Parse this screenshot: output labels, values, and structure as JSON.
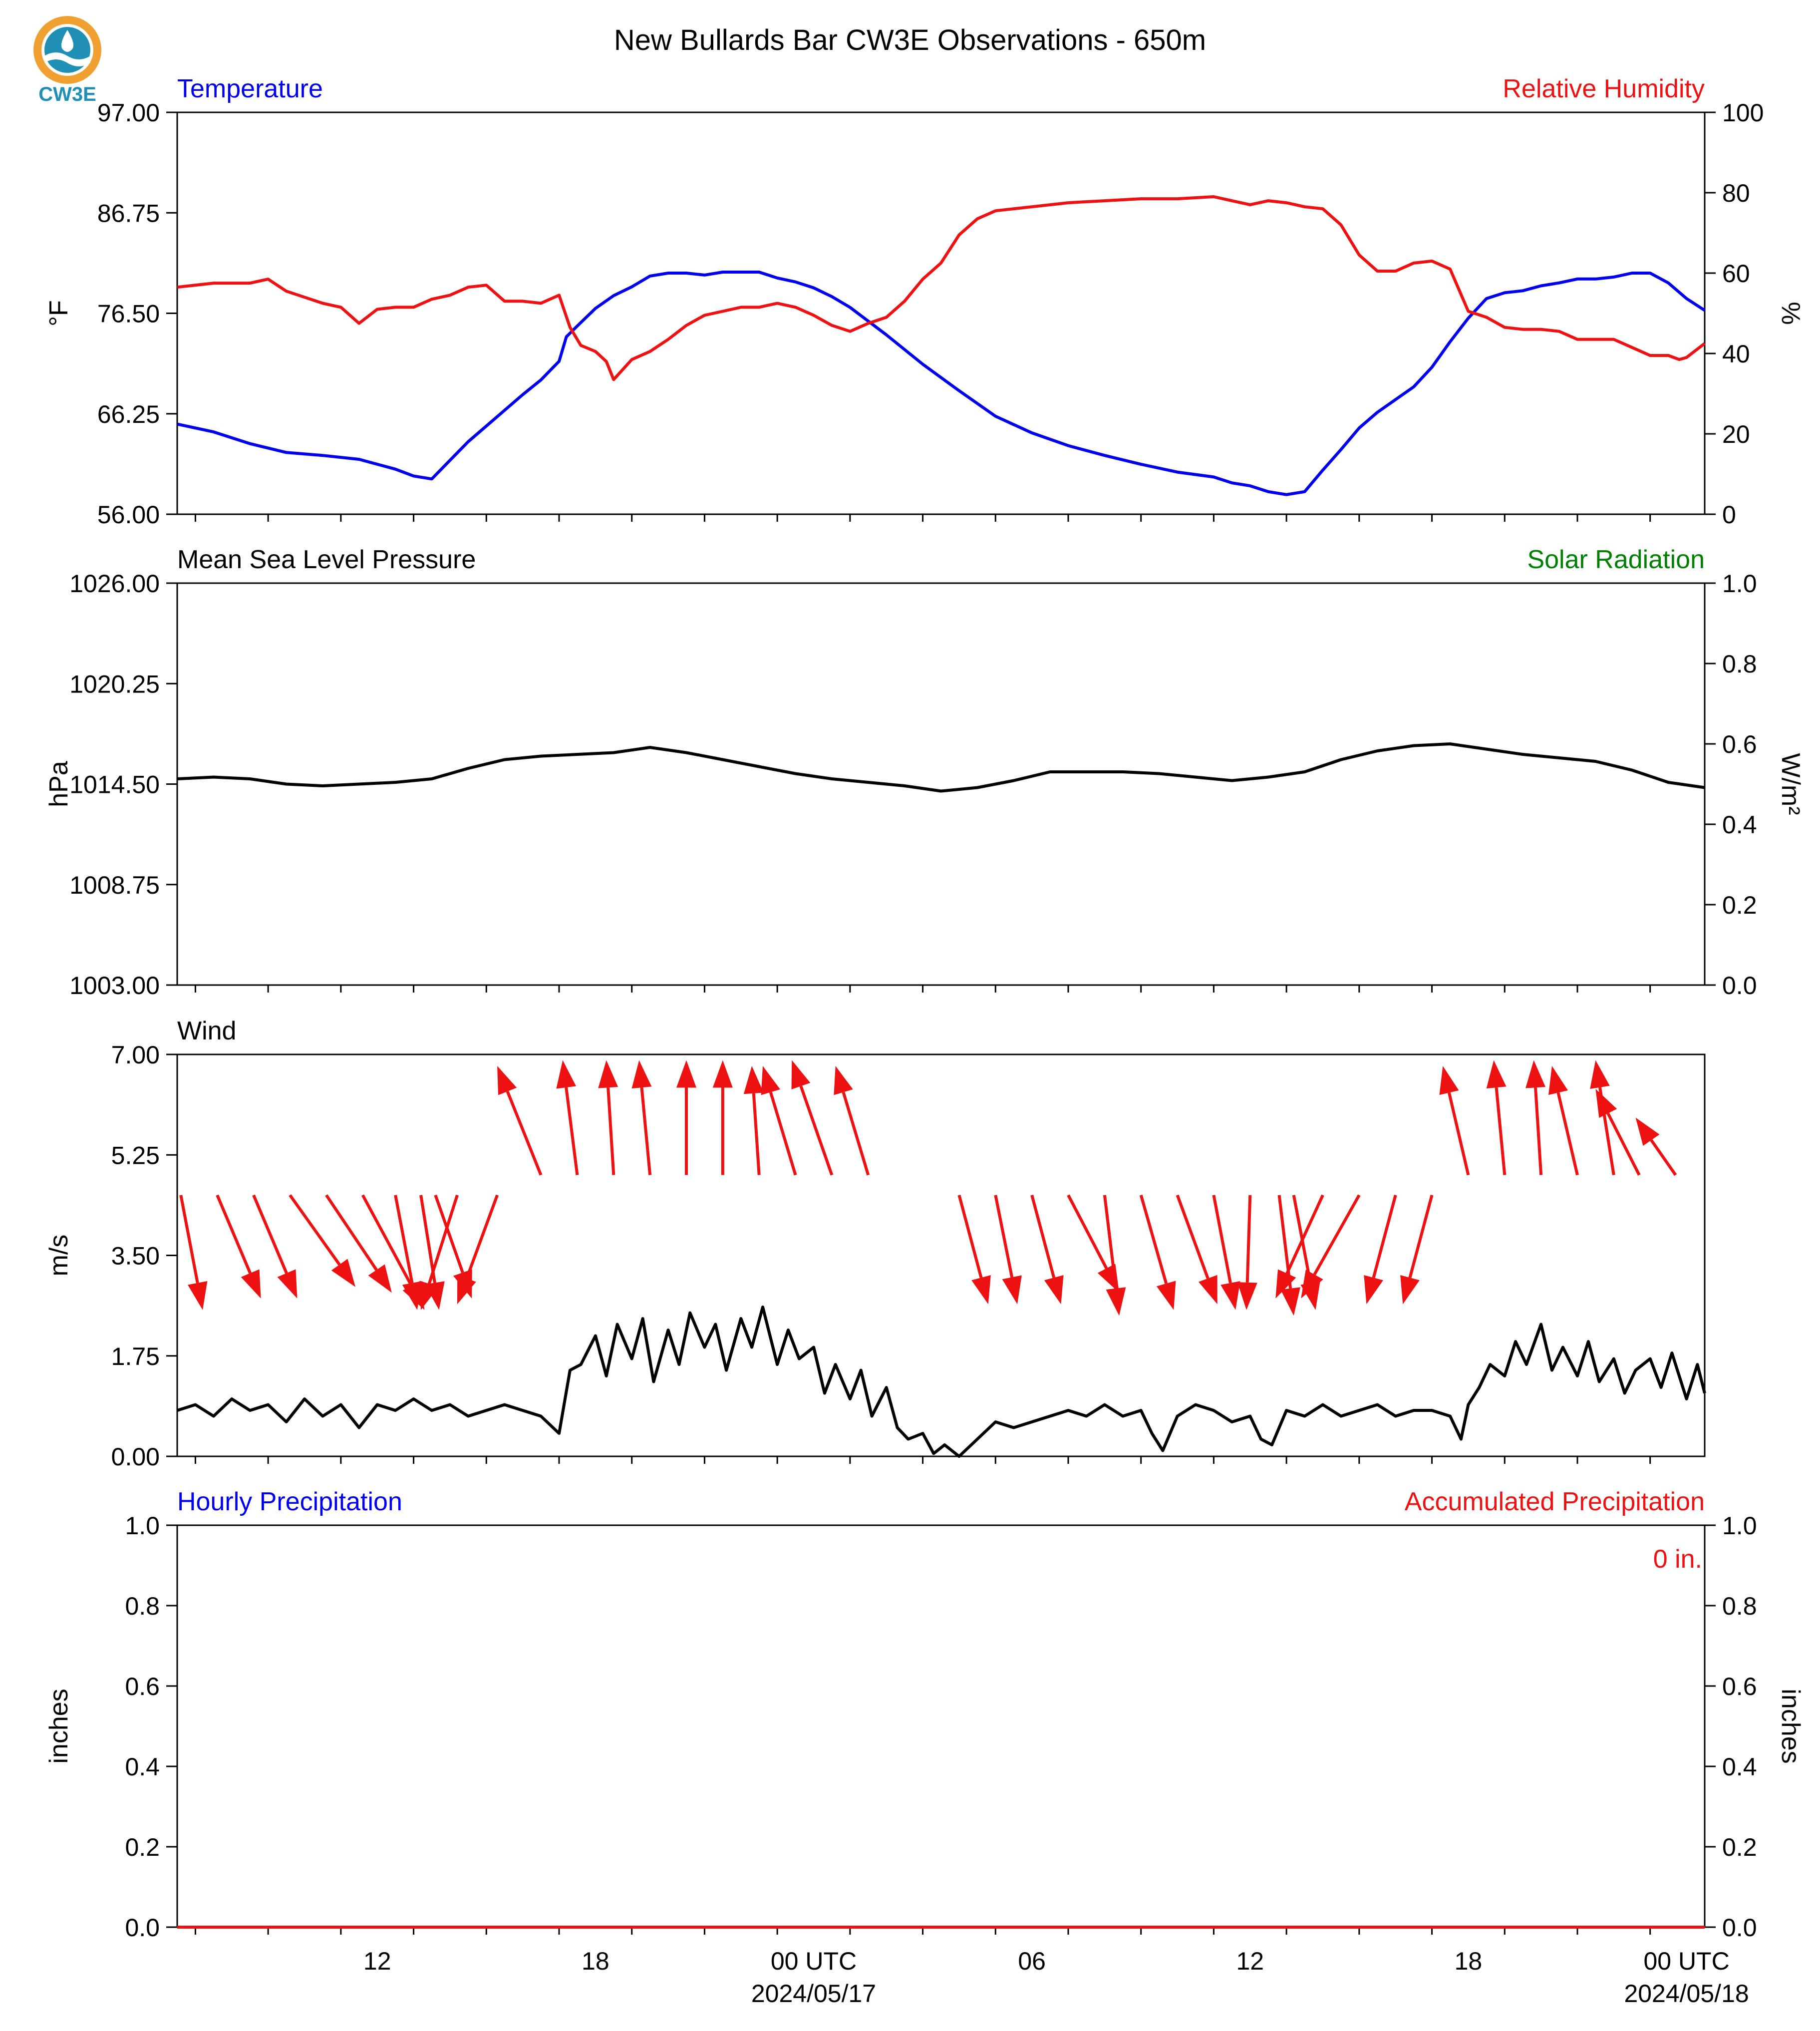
{
  "title": "New Bullards Bar CW3E Observations - 650m",
  "logo_text": "CW3E",
  "colors": {
    "temperature": "#0000ee",
    "humidity": "#ee1111",
    "pressure": "#000000",
    "wind_speed": "#000000",
    "wind_arrow": "#ee1111",
    "solar": "#008000",
    "hourly_precip": "#0000ee",
    "accum_precip": "#ee1111",
    "axis": "#000000"
  },
  "x_axis": {
    "range_hours": [
      6.5,
      48.5
    ],
    "major_ticks": [
      {
        "hour": 12,
        "label": "12",
        "sublabel": ""
      },
      {
        "hour": 18,
        "label": "18",
        "sublabel": ""
      },
      {
        "hour": 24,
        "label": "00 UTC",
        "sublabel": "2024/05/17"
      },
      {
        "hour": 30,
        "label": "06",
        "sublabel": ""
      },
      {
        "hour": 36,
        "label": "12",
        "sublabel": ""
      },
      {
        "hour": 42,
        "label": "18",
        "sublabel": ""
      },
      {
        "hour": 48,
        "label": "00 UTC",
        "sublabel": "2024/05/18"
      }
    ],
    "minor_step_hours": 2
  },
  "chart_data": [
    {
      "type": "line",
      "left_title": "Temperature",
      "right_title": "Relative Humidity",
      "ylabel": "°F",
      "ylabel_right": "%",
      "ylim": [
        56.0,
        97.0
      ],
      "yticks": [
        "56.00",
        "66.25",
        "76.50",
        "86.75",
        "97.00"
      ],
      "ylim_right": [
        0,
        100
      ],
      "yticks_right": [
        "0",
        "20",
        "40",
        "60",
        "80",
        "100"
      ],
      "series": [
        {
          "name": "Temperature",
          "axis": "left",
          "x": [
            6.5,
            7.5,
            8.5,
            9.5,
            10.5,
            11.5,
            12.5,
            13.0,
            13.5,
            14.0,
            14.5,
            15.0,
            15.5,
            16.0,
            16.5,
            17.0,
            17.2,
            17.5,
            18.0,
            18.5,
            19.0,
            19.5,
            20.0,
            20.5,
            21.0,
            21.5,
            22.0,
            22.5,
            23.0,
            23.5,
            24.0,
            24.5,
            25.0,
            25.5,
            26.0,
            27.0,
            28.0,
            29.0,
            30.0,
            31.0,
            32.0,
            33.0,
            34.0,
            35.0,
            35.5,
            36.0,
            36.5,
            37.0,
            37.5,
            38.0,
            38.5,
            39.0,
            39.5,
            40.0,
            40.5,
            41.0,
            41.5,
            42.0,
            42.5,
            43.0,
            43.5,
            44.0,
            44.5,
            45.0,
            45.5,
            46.0,
            46.5,
            47.0,
            47.5,
            48.0,
            48.5
          ],
          "y": [
            65.2,
            64.4,
            63.2,
            62.3,
            62.0,
            61.6,
            60.6,
            59.9,
            59.6,
            61.5,
            63.4,
            65.0,
            66.6,
            68.2,
            69.7,
            71.6,
            74.1,
            75.2,
            77.0,
            78.3,
            79.2,
            80.3,
            80.6,
            80.6,
            80.4,
            80.7,
            80.7,
            80.7,
            80.1,
            79.7,
            79.1,
            78.2,
            77.1,
            75.7,
            74.3,
            71.3,
            68.6,
            66.0,
            64.3,
            63.0,
            62.0,
            61.1,
            60.3,
            59.8,
            59.2,
            58.9,
            58.3,
            58.0,
            58.3,
            60.5,
            62.6,
            64.8,
            66.4,
            67.7,
            69.0,
            71.0,
            73.6,
            76.0,
            78.0,
            78.6,
            78.8,
            79.3,
            79.6,
            80.0,
            80.0,
            80.2,
            80.6,
            80.6,
            79.6,
            78.0,
            76.8
          ]
        },
        {
          "name": "Relative Humidity",
          "axis": "right",
          "x": [
            6.5,
            7.5,
            8.5,
            9.0,
            9.5,
            10.0,
            10.5,
            11.0,
            11.5,
            12.0,
            12.5,
            13.0,
            13.5,
            14.0,
            14.5,
            15.0,
            15.5,
            16.0,
            16.5,
            17.0,
            17.3,
            17.6,
            18.0,
            18.3,
            18.5,
            19.0,
            19.5,
            20.0,
            20.5,
            21.0,
            21.5,
            22.0,
            22.5,
            23.0,
            23.5,
            24.0,
            24.5,
            25.0,
            25.5,
            26.0,
            26.5,
            27.0,
            27.5,
            28.0,
            28.5,
            29.0,
            29.5,
            30.0,
            31.0,
            32.0,
            33.0,
            34.0,
            35.0,
            35.5,
            36.0,
            36.5,
            37.0,
            37.5,
            38.0,
            38.5,
            39.0,
            39.5,
            40.0,
            40.5,
            41.0,
            41.5,
            42.0,
            42.5,
            43.0,
            43.5,
            44.0,
            44.5,
            45.0,
            45.5,
            46.0,
            46.5,
            47.0,
            47.5,
            47.8,
            48.0,
            48.5
          ],
          "y": [
            56.5,
            57.5,
            57.5,
            58.5,
            55.5,
            54.0,
            52.5,
            51.5,
            47.5,
            51.0,
            51.5,
            51.5,
            53.5,
            54.5,
            56.5,
            57.0,
            53.0,
            53.0,
            52.5,
            54.5,
            46.5,
            42.0,
            40.5,
            38.0,
            33.5,
            38.5,
            40.5,
            43.5,
            47.0,
            49.5,
            50.5,
            51.5,
            51.5,
            52.5,
            51.5,
            49.5,
            47.0,
            45.5,
            47.5,
            49.0,
            53.0,
            58.5,
            62.5,
            69.5,
            73.5,
            75.5,
            76.0,
            76.5,
            77.5,
            78.0,
            78.5,
            78.5,
            79.0,
            78.0,
            77.0,
            78.0,
            77.5,
            76.5,
            76.0,
            72.0,
            64.5,
            60.5,
            60.5,
            62.5,
            63.0,
            61.0,
            50.5,
            49.0,
            46.5,
            46.0,
            46.0,
            45.5,
            43.5,
            43.5,
            43.5,
            41.5,
            39.5,
            39.5,
            38.5,
            39.0,
            42.5
          ]
        }
      ]
    },
    {
      "type": "line",
      "left_title": "Mean Sea Level Pressure",
      "right_title": "Solar Radiation",
      "ylabel": "hPa",
      "ylabel_right": "W/m²",
      "ylim": [
        1003.0,
        1026.0
      ],
      "yticks": [
        "1003.00",
        "1008.75",
        "1014.50",
        "1020.25",
        "1026.00"
      ],
      "ylim_right": [
        0,
        1
      ],
      "yticks_right": [
        "0.0",
        "0.2",
        "0.4",
        "0.6",
        "0.8",
        "1.0"
      ],
      "series": [
        {
          "name": "Mean Sea Level Pressure",
          "axis": "left",
          "x": [
            6.5,
            7.5,
            8.5,
            9.5,
            10.5,
            11.5,
            12.5,
            13.5,
            14.5,
            15.5,
            16.5,
            17.5,
            18.5,
            19.5,
            20.5,
            21.5,
            22.5,
            23.5,
            24.5,
            25.5,
            26.5,
            27.5,
            28.5,
            29.5,
            30.5,
            31.5,
            32.5,
            33.5,
            34.5,
            35.5,
            36.5,
            37.5,
            38.5,
            39.5,
            40.5,
            41.5,
            42.5,
            43.5,
            44.5,
            45.5,
            46.5,
            47.5,
            48.5
          ],
          "y": [
            1014.8,
            1014.9,
            1014.8,
            1014.5,
            1014.4,
            1014.5,
            1014.6,
            1014.8,
            1015.4,
            1015.9,
            1016.1,
            1016.2,
            1016.3,
            1016.6,
            1016.3,
            1015.9,
            1015.5,
            1015.1,
            1014.8,
            1014.6,
            1014.4,
            1014.1,
            1014.3,
            1014.7,
            1015.2,
            1015.2,
            1015.2,
            1015.1,
            1014.9,
            1014.7,
            1014.9,
            1015.2,
            1015.9,
            1016.4,
            1016.7,
            1016.8,
            1016.5,
            1016.2,
            1016.0,
            1015.8,
            1015.3,
            1014.6,
            1014.3
          ]
        }
      ]
    },
    {
      "type": "line",
      "left_title": "Wind",
      "ylabel": "m/s",
      "ylim": [
        0,
        7
      ],
      "yticks": [
        "0.00",
        "1.75",
        "3.50",
        "5.25",
        "7.00"
      ],
      "series": [
        {
          "name": "Wind Speed",
          "axis": "left",
          "x": [
            6.5,
            7.0,
            7.5,
            8.0,
            8.5,
            9.0,
            9.5,
            10.0,
            10.5,
            11.0,
            11.5,
            12.0,
            12.5,
            13.0,
            13.5,
            14.0,
            14.5,
            15.0,
            15.5,
            16.0,
            16.5,
            17.0,
            17.3,
            17.6,
            18.0,
            18.3,
            18.6,
            19.0,
            19.3,
            19.6,
            20.0,
            20.3,
            20.6,
            21.0,
            21.3,
            21.6,
            22.0,
            22.3,
            22.6,
            23.0,
            23.3,
            23.6,
            24.0,
            24.3,
            24.6,
            25.0,
            25.3,
            25.6,
            26.0,
            26.3,
            26.6,
            27.0,
            27.3,
            27.6,
            28.0,
            28.5,
            29.0,
            29.5,
            30.0,
            30.5,
            31.0,
            31.5,
            32.0,
            32.5,
            33.0,
            33.3,
            33.6,
            34.0,
            34.5,
            35.0,
            35.5,
            36.0,
            36.3,
            36.6,
            37.0,
            37.5,
            38.0,
            38.5,
            39.0,
            39.5,
            40.0,
            40.5,
            41.0,
            41.5,
            41.8,
            42.0,
            42.3,
            42.6,
            43.0,
            43.3,
            43.6,
            44.0,
            44.3,
            44.6,
            45.0,
            45.3,
            45.6,
            46.0,
            46.3,
            46.6,
            47.0,
            47.3,
            47.6,
            48.0,
            48.3,
            48.5
          ],
          "y": [
            0.8,
            0.9,
            0.7,
            1.0,
            0.8,
            0.9,
            0.6,
            1.0,
            0.7,
            0.9,
            0.5,
            0.9,
            0.8,
            1.0,
            0.8,
            0.9,
            0.7,
            0.8,
            0.9,
            0.8,
            0.7,
            0.4,
            1.5,
            1.6,
            2.1,
            1.4,
            2.3,
            1.7,
            2.4,
            1.3,
            2.2,
            1.6,
            2.5,
            1.9,
            2.3,
            1.5,
            2.4,
            1.9,
            2.6,
            1.6,
            2.2,
            1.7,
            1.9,
            1.1,
            1.6,
            1.0,
            1.5,
            0.7,
            1.2,
            0.5,
            0.3,
            0.4,
            0.05,
            0.2,
            0.0,
            0.3,
            0.6,
            0.5,
            0.6,
            0.7,
            0.8,
            0.7,
            0.9,
            0.7,
            0.8,
            0.4,
            0.1,
            0.7,
            0.9,
            0.8,
            0.6,
            0.7,
            0.3,
            0.2,
            0.8,
            0.7,
            0.9,
            0.7,
            0.8,
            0.9,
            0.7,
            0.8,
            0.8,
            0.7,
            0.3,
            0.9,
            1.2,
            1.6,
            1.4,
            2.0,
            1.6,
            2.3,
            1.5,
            1.9,
            1.4,
            2.0,
            1.3,
            1.7,
            1.1,
            1.5,
            1.7,
            1.2,
            1.8,
            1.0,
            1.6,
            1.1
          ]
        },
        {
          "name": "Wind Direction Arrows",
          "axis": "left",
          "type": "quiver",
          "x": [
            6.6,
            7.6,
            8.6,
            9.6,
            10.6,
            11.6,
            12.5,
            13.2,
            13.6,
            14.2,
            15.3,
            16.5,
            17.5,
            18.5,
            19.5,
            20.5,
            21.5,
            22.5,
            23.5,
            24.5,
            25.5,
            28.0,
            29.0,
            30.0,
            31.0,
            32.0,
            33.0,
            34.0,
            35.0,
            36.0,
            36.8,
            37.2,
            38.0,
            39.0,
            40.0,
            41.0,
            42.0,
            43.0,
            44.0,
            45.0,
            46.0,
            46.7,
            47.7
          ],
          "y_tail": [
            4.55,
            4.55,
            4.55,
            4.55,
            4.55,
            4.55,
            4.55,
            4.55,
            4.55,
            4.55,
            4.55,
            4.9,
            4.9,
            4.9,
            4.9,
            4.9,
            4.9,
            4.9,
            4.9,
            4.9,
            4.9,
            4.55,
            4.55,
            4.55,
            4.55,
            4.55,
            4.55,
            4.55,
            4.55,
            4.55,
            4.55,
            4.55,
            4.55,
            4.55,
            4.55,
            4.55,
            4.9,
            4.9,
            4.9,
            4.9,
            4.9,
            4.9,
            4.9
          ],
          "u_hours": [
            0.6,
            1.2,
            1.2,
            1.8,
            1.8,
            1.7,
            0.6,
            0.5,
            1.0,
            -1.0,
            -1.1,
            -1.2,
            -0.4,
            -0.2,
            -0.3,
            0.0,
            0.0,
            -0.2,
            -0.9,
            -1.1,
            -0.9,
            0.8,
            0.6,
            0.8,
            1.4,
            0.4,
            0.9,
            1.1,
            0.6,
            -0.1,
            0.4,
            0.6,
            -1.3,
            -1.6,
            -0.8,
            -0.8,
            -0.7,
            -0.3,
            -0.2,
            -0.7,
            -0.5,
            -1.2,
            -1.1
          ],
          "v": [
            -2.0,
            -1.8,
            -1.8,
            -1.6,
            -1.7,
            -2.0,
            -2.0,
            -2.0,
            -1.8,
            -2.0,
            -1.9,
            1.9,
            2.0,
            2.0,
            2.0,
            2.0,
            2.0,
            1.9,
            1.9,
            2.0,
            1.9,
            -1.9,
            -1.9,
            -1.9,
            -1.7,
            -2.1,
            -2.0,
            -1.9,
            -2.0,
            -2.0,
            -2.1,
            -2.0,
            -1.8,
            -1.8,
            -1.9,
            -1.9,
            1.9,
            2.0,
            2.0,
            1.9,
            2.0,
            1.5,
            1.0
          ]
        }
      ]
    },
    {
      "type": "line",
      "left_title": "Hourly Precipitation",
      "right_title": "Accumulated Precipitation",
      "annotation": "0 in.",
      "ylabel": "inches",
      "ylabel_right": "inches",
      "ylim": [
        0,
        1
      ],
      "yticks": [
        "0.0",
        "0.2",
        "0.4",
        "0.6",
        "0.8",
        "1.0"
      ],
      "ylim_right": [
        0,
        1
      ],
      "yticks_right": [
        "0.0",
        "0.2",
        "0.4",
        "0.6",
        "0.8",
        "1.0"
      ],
      "series": [
        {
          "name": "Hourly Precipitation",
          "axis": "left",
          "x": [
            6.5,
            48.5
          ],
          "y": [
            0,
            0
          ]
        },
        {
          "name": "Accumulated Precipitation",
          "axis": "right",
          "x": [
            6.5,
            48.5
          ],
          "y": [
            0,
            0
          ]
        }
      ]
    }
  ]
}
